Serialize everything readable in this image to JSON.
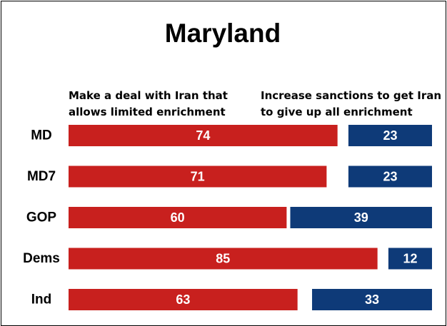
{
  "chart_data": {
    "type": "bar",
    "title": "Maryland",
    "categories": [
      "MD",
      "MD7",
      "GOP",
      "Dems",
      "Ind"
    ],
    "series": [
      {
        "name": "Make a deal with Iran that allows limited enrichment",
        "name_lines": [
          "Make a deal with Iran that",
          "allows limited enrichment"
        ],
        "values": [
          74,
          71,
          60,
          85,
          63
        ],
        "color": "#C8201E"
      },
      {
        "name": "Increase sanctions to get Iran to give up all enrichment",
        "name_lines": [
          "Increase sanctions to get Iran",
          "to give up all enrichment"
        ],
        "values": [
          23,
          23,
          39,
          12,
          33
        ],
        "color": "#0E3A78"
      }
    ],
    "orientation": "horizontal",
    "layout": "diverging-split",
    "xlim": [
      0,
      100
    ],
    "grid": false,
    "legend_position": "top"
  }
}
